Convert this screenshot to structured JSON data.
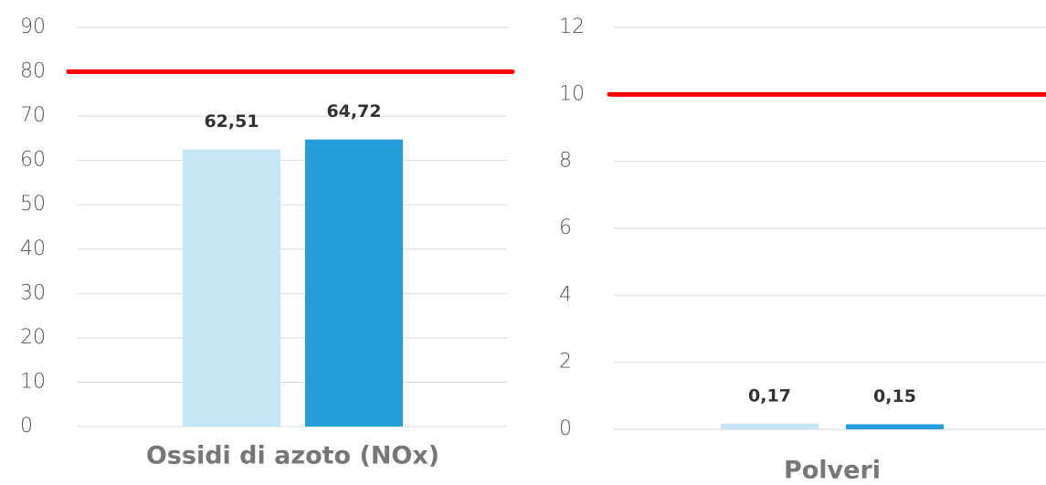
{
  "chart_data": [
    {
      "type": "bar",
      "categories": [
        "Ossidi di azoto (NOx)"
      ],
      "series": [
        {
          "color": "#c5e6f2",
          "values": [
            62.51
          ],
          "value_labels": [
            "62,51"
          ]
        },
        {
          "color": "#259fdb",
          "values": [
            64.72
          ],
          "value_labels": [
            "64,72"
          ]
        }
      ],
      "ylim": [
        0,
        90
      ],
      "yticks": [
        0,
        10,
        20,
        30,
        40,
        50,
        60,
        70,
        80,
        90
      ],
      "grid": true,
      "limit": 80,
      "limit_color": "#ff0000"
    },
    {
      "type": "bar",
      "categories": [
        "Polveri"
      ],
      "series": [
        {
          "color": "#c5e6f2",
          "values": [
            0.17
          ],
          "value_labels": [
            "0,17"
          ]
        },
        {
          "color": "#259fdb",
          "values": [
            0.15
          ],
          "value_labels": [
            "0,15"
          ]
        }
      ],
      "ylim": [
        0,
        12
      ],
      "yticks": [
        0,
        2,
        4,
        6,
        8,
        10,
        12
      ],
      "grid": true,
      "limit": 10,
      "limit_color": "#ff0000"
    }
  ]
}
